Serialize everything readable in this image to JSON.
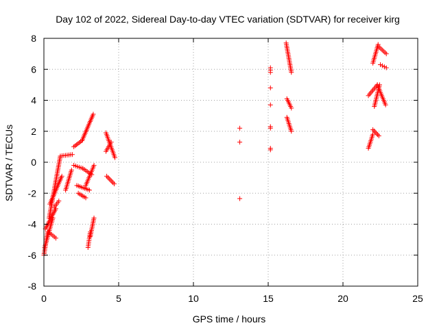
{
  "chart_data": {
    "type": "scatter",
    "title": "Day 102 of 2022, Sidereal Day-to-day VTEC variation (SDTVAR) for receiver kirg",
    "xlabel": "GPS time / hours",
    "ylabel": "SDTVAR / TECUs",
    "xlim": [
      0,
      25
    ],
    "ylim": [
      -8,
      8
    ],
    "xticks": [
      0,
      5,
      10,
      15,
      20,
      25
    ],
    "yticks": [
      -8,
      -6,
      -4,
      -2,
      0,
      2,
      4,
      6,
      8
    ],
    "grid": true,
    "marker": "+",
    "series_color": "#ff0000",
    "segments": [
      {
        "x_start": 0.0,
        "x_end": 0.25,
        "y_start": -6.0,
        "y_end": -4.5
      },
      {
        "x_start": 0.05,
        "x_end": 0.6,
        "y_start": -5.5,
        "y_end": -3.6
      },
      {
        "x_start": 0.1,
        "x_end": 0.8,
        "y_start": -4.3,
        "y_end": -3.0
      },
      {
        "x_start": 0.3,
        "x_end": 0.8,
        "y_start": -4.5,
        "y_end": -4.9
      },
      {
        "x_start": 0.35,
        "x_end": 1.1,
        "y_start": -3.6,
        "y_end": 0.4
      },
      {
        "x_start": 0.4,
        "x_end": 1.2,
        "y_start": -2.7,
        "y_end": -0.9
      },
      {
        "x_start": 0.7,
        "x_end": 1.0,
        "y_start": -2.9,
        "y_end": -2.5
      },
      {
        "x_start": 1.1,
        "x_end": 1.9,
        "y_start": 0.4,
        "y_end": 0.5
      },
      {
        "x_start": 1.45,
        "x_end": 1.85,
        "y_start": -1.8,
        "y_end": -0.5
      },
      {
        "x_start": 2.0,
        "x_end": 2.55,
        "y_start": 1.0,
        "y_end": 1.4
      },
      {
        "x_start": 2.55,
        "x_end": 3.3,
        "y_start": 1.4,
        "y_end": 3.1
      },
      {
        "x_start": 2.0,
        "x_end": 2.6,
        "y_start": -0.2,
        "y_end": -0.4
      },
      {
        "x_start": 2.6,
        "x_end": 3.2,
        "y_start": -0.4,
        "y_end": -0.8
      },
      {
        "x_start": 2.2,
        "x_end": 3.05,
        "y_start": -1.5,
        "y_end": -1.8
      },
      {
        "x_start": 2.3,
        "x_end": 2.8,
        "y_start": -2.0,
        "y_end": -2.3
      },
      {
        "x_start": 2.8,
        "x_end": 3.35,
        "y_start": -1.5,
        "y_end": -0.2
      },
      {
        "x_start": 2.95,
        "x_end": 3.1,
        "y_start": -5.5,
        "y_end": -4.5
      },
      {
        "x_start": 3.1,
        "x_end": 3.35,
        "y_start": -4.8,
        "y_end": -3.6
      },
      {
        "x_start": 4.15,
        "x_end": 4.75,
        "y_start": 1.9,
        "y_end": 0.3
      },
      {
        "x_start": 4.15,
        "x_end": 4.5,
        "y_start": 0.7,
        "y_end": 1.3
      },
      {
        "x_start": 4.2,
        "x_end": 4.7,
        "y_start": -0.9,
        "y_end": -1.4
      },
      {
        "x_start": 13.1,
        "x_end": 13.1,
        "y_start": 2.2,
        "y_end": 2.2
      },
      {
        "x_start": 13.1,
        "x_end": 13.1,
        "y_start": 1.3,
        "y_end": 1.3
      },
      {
        "x_start": 13.1,
        "x_end": 13.1,
        "y_start": -2.35,
        "y_end": -2.35
      },
      {
        "x_start": 15.15,
        "x_end": 15.15,
        "y_start": 6.1,
        "y_end": 5.8
      },
      {
        "x_start": 15.15,
        "x_end": 15.15,
        "y_start": 4.8,
        "y_end": 4.8
      },
      {
        "x_start": 15.15,
        "x_end": 15.15,
        "y_start": 3.7,
        "y_end": 3.7
      },
      {
        "x_start": 15.15,
        "x_end": 15.15,
        "y_start": 2.3,
        "y_end": 2.2
      },
      {
        "x_start": 15.15,
        "x_end": 15.15,
        "y_start": 0.9,
        "y_end": 0.8
      },
      {
        "x_start": 16.2,
        "x_end": 16.55,
        "y_start": 7.7,
        "y_end": 5.8
      },
      {
        "x_start": 16.25,
        "x_end": 16.55,
        "y_start": 4.1,
        "y_end": 3.5
      },
      {
        "x_start": 16.25,
        "x_end": 16.55,
        "y_start": 2.9,
        "y_end": 2.0
      },
      {
        "x_start": 21.7,
        "x_end": 22.0,
        "y_start": 0.9,
        "y_end": 1.8
      },
      {
        "x_start": 22.0,
        "x_end": 22.4,
        "y_start": 2.1,
        "y_end": 1.7
      },
      {
        "x_start": 21.7,
        "x_end": 22.3,
        "y_start": 4.3,
        "y_end": 5.0
      },
      {
        "x_start": 22.1,
        "x_end": 22.45,
        "y_start": 3.6,
        "y_end": 5.0
      },
      {
        "x_start": 22.3,
        "x_end": 22.85,
        "y_start": 5.0,
        "y_end": 3.7
      },
      {
        "x_start": 22.0,
        "x_end": 22.35,
        "y_start": 6.4,
        "y_end": 7.6
      },
      {
        "x_start": 22.35,
        "x_end": 22.9,
        "y_start": 7.5,
        "y_end": 7.0
      },
      {
        "x_start": 22.5,
        "x_end": 22.9,
        "y_start": 6.3,
        "y_end": 6.1
      }
    ]
  }
}
